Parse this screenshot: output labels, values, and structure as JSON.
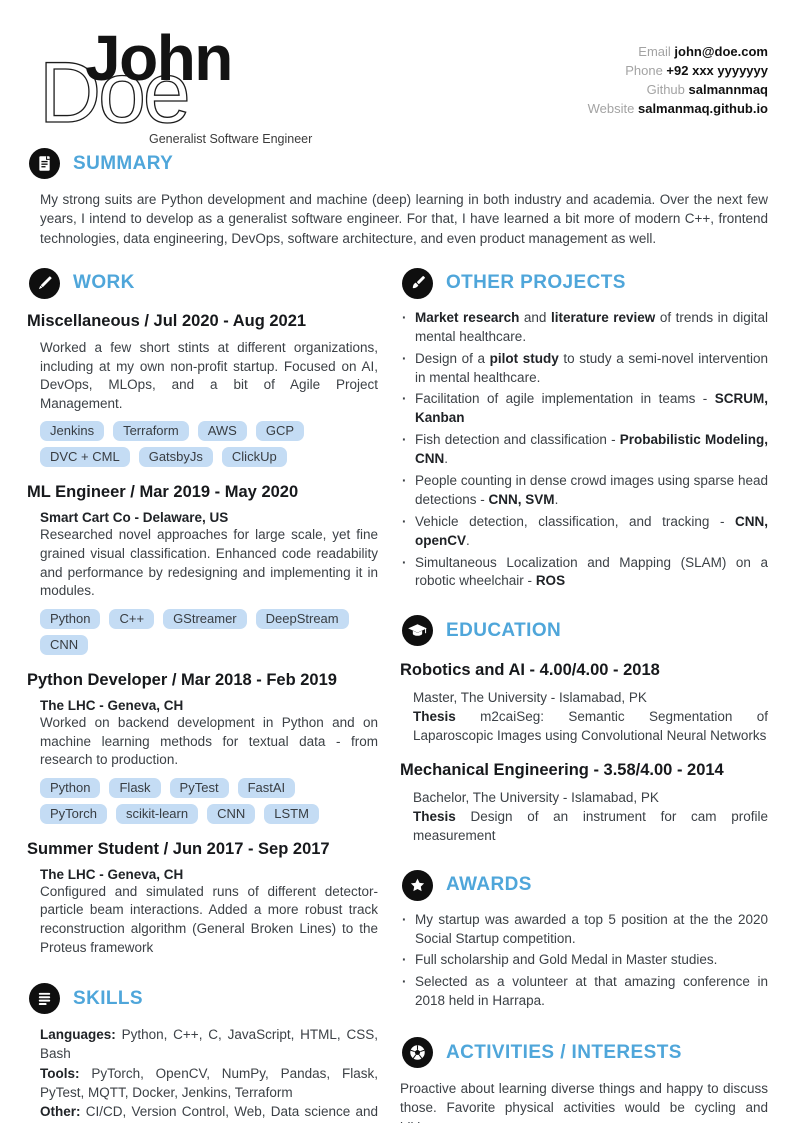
{
  "colors": {
    "accent_blue": "#4fa6da",
    "tag_bg": "#c4dcf4",
    "icon_circle": "#0f0f0f",
    "body_text": "#3c4146"
  },
  "header": {
    "first_name": "John",
    "last_name": "Doe",
    "subtitle": "Generalist Software Engineer",
    "contact": [
      {
        "label": "Email ",
        "value": "john@doe.com"
      },
      {
        "label": "Phone ",
        "value": "+92 xxx yyyyyyy"
      },
      {
        "label": "Github ",
        "value": "salmannmaq"
      },
      {
        "label": "Website ",
        "value": "salmanmaq.github.io"
      }
    ]
  },
  "summary": {
    "heading": "SUMMARY",
    "icon": "document-icon",
    "text": "My strong suits are Python development and machine (deep) learning in both industry and academia. Over the next few years, I intend to develop as a generalist software engineer. For that, I have learned a bit more of modern C++, frontend technologies, data engineering, DevOps, software architecture, and even product management as well."
  },
  "work": {
    "heading": "WORK",
    "icon": "pen-icon",
    "jobs": [
      {
        "title": "Miscellaneous / Jul 2020 - Aug 2021",
        "org": "",
        "description": "Worked a few short stints at different organizations, including at my own non-profit startup. Focused on AI, DevOps, MLOps, and a bit of Agile Project Management.",
        "tags": [
          "Jenkins",
          "Terraform",
          "AWS",
          "GCP",
          "DVC + CML",
          "GatsbyJs",
          "ClickUp"
        ]
      },
      {
        "title": "ML Engineer / Mar 2019 - May 2020",
        "org": "Smart Cart Co - Delaware, US",
        "description": "Researched novel approaches for large scale, yet fine grained visual classification. Enhanced code readability and performance by redesigning and implementing it in modules.",
        "tags": [
          "Python",
          "C++",
          "GStreamer",
          "DeepStream",
          "CNN"
        ]
      },
      {
        "title": "Python Developer / Mar 2018 - Feb 2019",
        "org": "The LHC - Geneva, CH",
        "description": "Worked on backend development in Python and on machine learning methods for textual data - from research to production.",
        "tags": [
          "Python",
          "Flask",
          "PyTest",
          "FastAI",
          "PyTorch",
          "scikit-learn",
          "CNN",
          "LSTM"
        ]
      },
      {
        "title": "Summer Student / Jun 2017 - Sep 2017",
        "org": "The LHC - Geneva, CH",
        "description": "Configured and simulated runs of different detector-particle beam interactions. Added a more robust track reconstruction algorithm (General Broken Lines) to the Proteus framework",
        "tags": []
      }
    ]
  },
  "skills": {
    "heading": "SKILLS",
    "icon": "list-icon",
    "lines": [
      {
        "label": "Languages:",
        "text": " Python, C++, C, JavaScript, HTML, CSS, Bash"
      },
      {
        "label": "Tools:",
        "text": " PyTorch, OpenCV, NumPy, Pandas, Flask, PyTest, MQTT, Docker, Jenkins, Terraform"
      },
      {
        "label": "Other:",
        "text": " CI/CD, Version Control, Web, Data science and ML, Cloud computing"
      }
    ]
  },
  "projects": {
    "heading": "OTHER PROJECTS",
    "icon": "paintbrush-icon",
    "items": [
      [
        {
          "text": "Market research",
          "bold": true
        },
        {
          "text": " and ",
          "bold": false
        },
        {
          "text": "literature review",
          "bold": true
        },
        {
          "text": " of trends in digital mental healthcare.",
          "bold": false
        }
      ],
      [
        {
          "text": "Design of a ",
          "bold": false
        },
        {
          "text": "pilot study",
          "bold": true
        },
        {
          "text": " to study a semi-novel intervention in mental healthcare.",
          "bold": false
        }
      ],
      [
        {
          "text": "Facilitation of agile implementation in teams - ",
          "bold": false
        },
        {
          "text": "SCRUM, Kanban",
          "bold": true
        }
      ],
      [
        {
          "text": "Fish detection and classification - ",
          "bold": false
        },
        {
          "text": "Probabilistic Modeling, CNN",
          "bold": true
        },
        {
          "text": ".",
          "bold": false
        }
      ],
      [
        {
          "text": "People counting in dense crowd images using sparse head detections - ",
          "bold": false
        },
        {
          "text": "CNN, SVM",
          "bold": true
        },
        {
          "text": ".",
          "bold": false
        }
      ],
      [
        {
          "text": "Vehicle detection, classification, and tracking - ",
          "bold": false
        },
        {
          "text": "CNN, openCV",
          "bold": true
        },
        {
          "text": ".",
          "bold": false
        }
      ],
      [
        {
          "text": "Simultaneous Localization and Mapping (SLAM) on a robotic wheelchair - ",
          "bold": false
        },
        {
          "text": "ROS",
          "bold": true
        }
      ]
    ]
  },
  "education": {
    "heading": "EDUCATION",
    "icon": "graduation-cap-icon",
    "entries": [
      {
        "title": "Robotics and AI - 4.00/4.00 - 2018",
        "line1": "Master, The University - Islamabad, PK",
        "thesis_label": "Thesis",
        "thesis_text": " m2caiSeg: Semantic Segmentation of Laparoscopic Images using Convolutional Neural Networks"
      },
      {
        "title": "Mechanical Engineering - 3.58/4.00 - 2014",
        "line1": "Bachelor, The University - Islamabad, PK",
        "thesis_label": "Thesis",
        "thesis_text": " Design of an instrument for cam profile measurement"
      }
    ]
  },
  "awards": {
    "heading": "AWARDS",
    "icon": "star-icon",
    "items": [
      "My startup was awarded a top 5 position at the the 2020 Social Startup competition.",
      "Full scholarship and Gold Medal in Master studies.",
      "Selected as a volunteer at that amazing conference in 2018 held in Harrapa."
    ]
  },
  "activities": {
    "heading": "ACTIVITIES / INTERESTS",
    "icon": "soccer-ball-icon",
    "text": "Proactive about learning diverse things and happy to discuss those. Favorite physical activities would be cycling and hiking."
  }
}
